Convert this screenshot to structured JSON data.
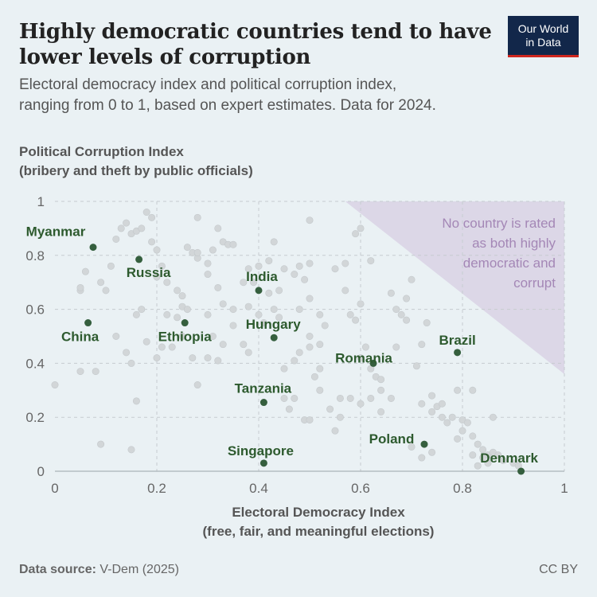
{
  "header": {
    "title": "Highly democratic countries tend to have\nlower levels of corruption",
    "subtitle": "Electoral democracy index and political corruption index,\nranging from 0 to 1, based on expert estimates. Data for 2024.",
    "logo_line1": "Our World",
    "logo_line2": "in Data"
  },
  "footer": {
    "source_label": "Data source:",
    "source_value": "V-Dem (2025)",
    "license": "CC BY"
  },
  "colors": {
    "background": "#eaf1f4",
    "highlight_point": "#355f3e",
    "highlight_label": "#2d5a2e",
    "background_point": "#d2d6d8",
    "annotation_region": "#dcd7e7",
    "annotation_text": "#a487b6",
    "logo_bg": "#12274a",
    "logo_bar": "#ce261e"
  },
  "chart_data": {
    "type": "scatter",
    "xlabel": "Electoral Democracy Index\n(free, fair, and meaningful elections)",
    "ylabel": "Political Corruption Index\n(bribery and theft by public officials)",
    "xlim": [
      0,
      1
    ],
    "ylim": [
      0,
      1
    ],
    "xticks": [
      "0",
      "0.2",
      "0.4",
      "0.6",
      "0.8",
      "1"
    ],
    "yticks": [
      "0",
      "0.2",
      "0.4",
      "0.6",
      "0.8",
      "1"
    ],
    "grid": "dashed",
    "annotation": {
      "text": [
        "No country is rated",
        "as both highly",
        "democratic and",
        "corrupt"
      ],
      "region": [
        [
          0.57,
          1
        ],
        [
          1,
          1
        ],
        [
          1,
          0.36
        ]
      ]
    },
    "highlighted": [
      {
        "name": "Myanmar",
        "x": 0.075,
        "y": 0.83
      },
      {
        "name": "Russia",
        "x": 0.165,
        "y": 0.785
      },
      {
        "name": "India",
        "x": 0.4,
        "y": 0.67
      },
      {
        "name": "China",
        "x": 0.065,
        "y": 0.55
      },
      {
        "name": "Ethiopia",
        "x": 0.255,
        "y": 0.55
      },
      {
        "name": "Hungary",
        "x": 0.43,
        "y": 0.495
      },
      {
        "name": "Brazil",
        "x": 0.79,
        "y": 0.44
      },
      {
        "name": "Romania",
        "x": 0.625,
        "y": 0.4
      },
      {
        "name": "Tanzania",
        "x": 0.41,
        "y": 0.255
      },
      {
        "name": "Poland",
        "x": 0.725,
        "y": 0.1
      },
      {
        "name": "Singapore",
        "x": 0.41,
        "y": 0.03
      },
      {
        "name": "Denmark",
        "x": 0.915,
        "y": 0.0
      }
    ],
    "other_points": [
      [
        0.0,
        0.32
      ],
      [
        0.05,
        0.37
      ],
      [
        0.08,
        0.37
      ],
      [
        0.09,
        0.1
      ],
      [
        0.15,
        0.08
      ],
      [
        0.16,
        0.26
      ],
      [
        0.12,
        0.5
      ],
      [
        0.15,
        0.4
      ],
      [
        0.14,
        0.44
      ],
      [
        0.18,
        0.48
      ],
      [
        0.2,
        0.42
      ],
      [
        0.21,
        0.46
      ],
      [
        0.23,
        0.46
      ],
      [
        0.25,
        0.5
      ],
      [
        0.27,
        0.42
      ],
      [
        0.28,
        0.32
      ],
      [
        0.05,
        0.67
      ],
      [
        0.05,
        0.68
      ],
      [
        0.06,
        0.74
      ],
      [
        0.09,
        0.7
      ],
      [
        0.1,
        0.67
      ],
      [
        0.11,
        0.76
      ],
      [
        0.12,
        0.86
      ],
      [
        0.13,
        0.9
      ],
      [
        0.14,
        0.92
      ],
      [
        0.15,
        0.88
      ],
      [
        0.16,
        0.89
      ],
      [
        0.17,
        0.9
      ],
      [
        0.18,
        0.96
      ],
      [
        0.19,
        0.94
      ],
      [
        0.19,
        0.85
      ],
      [
        0.2,
        0.82
      ],
      [
        0.21,
        0.76
      ],
      [
        0.2,
        0.72
      ],
      [
        0.22,
        0.7
      ],
      [
        0.24,
        0.67
      ],
      [
        0.25,
        0.65
      ],
      [
        0.22,
        0.58
      ],
      [
        0.26,
        0.83
      ],
      [
        0.27,
        0.81
      ],
      [
        0.28,
        0.79
      ],
      [
        0.28,
        0.81
      ],
      [
        0.3,
        0.77
      ],
      [
        0.31,
        0.82
      ],
      [
        0.3,
        0.73
      ],
      [
        0.32,
        0.68
      ],
      [
        0.33,
        0.62
      ],
      [
        0.3,
        0.58
      ],
      [
        0.28,
        0.94
      ],
      [
        0.32,
        0.9
      ],
      [
        0.33,
        0.85
      ],
      [
        0.34,
        0.84
      ],
      [
        0.35,
        0.84
      ],
      [
        0.37,
        0.7
      ],
      [
        0.38,
        0.75
      ],
      [
        0.39,
        0.7
      ],
      [
        0.4,
        0.76
      ],
      [
        0.42,
        0.78
      ],
      [
        0.42,
        0.66
      ],
      [
        0.43,
        0.6
      ],
      [
        0.43,
        0.85
      ],
      [
        0.45,
        0.75
      ],
      [
        0.47,
        0.73
      ],
      [
        0.48,
        0.76
      ],
      [
        0.49,
        0.71
      ],
      [
        0.5,
        0.77
      ],
      [
        0.48,
        0.6
      ],
      [
        0.5,
        0.64
      ],
      [
        0.52,
        0.58
      ],
      [
        0.53,
        0.54
      ],
      [
        0.5,
        0.5
      ],
      [
        0.5,
        0.46
      ],
      [
        0.48,
        0.44
      ],
      [
        0.52,
        0.47
      ],
      [
        0.52,
        0.38
      ],
      [
        0.51,
        0.35
      ],
      [
        0.52,
        0.3
      ],
      [
        0.49,
        0.19
      ],
      [
        0.5,
        0.19
      ],
      [
        0.55,
        0.15
      ],
      [
        0.5,
        0.93
      ],
      [
        0.55,
        0.75
      ],
      [
        0.57,
        0.77
      ],
      [
        0.57,
        0.67
      ],
      [
        0.58,
        0.58
      ],
      [
        0.59,
        0.56
      ],
      [
        0.6,
        0.42
      ],
      [
        0.6,
        0.62
      ],
      [
        0.61,
        0.46
      ],
      [
        0.62,
        0.38
      ],
      [
        0.63,
        0.35
      ],
      [
        0.64,
        0.3
      ],
      [
        0.64,
        0.34
      ],
      [
        0.62,
        0.27
      ],
      [
        0.66,
        0.27
      ],
      [
        0.67,
        0.46
      ],
      [
        0.66,
        0.66
      ],
      [
        0.67,
        0.6
      ],
      [
        0.68,
        0.58
      ],
      [
        0.69,
        0.64
      ],
      [
        0.69,
        0.56
      ],
      [
        0.7,
        0.71
      ],
      [
        0.71,
        0.39
      ],
      [
        0.72,
        0.25
      ],
      [
        0.72,
        0.47
      ],
      [
        0.73,
        0.55
      ],
      [
        0.74,
        0.28
      ],
      [
        0.74,
        0.22
      ],
      [
        0.74,
        0.07
      ],
      [
        0.75,
        0.24
      ],
      [
        0.76,
        0.25
      ],
      [
        0.76,
        0.2
      ],
      [
        0.77,
        0.18
      ],
      [
        0.78,
        0.2
      ],
      [
        0.8,
        0.15
      ],
      [
        0.8,
        0.19
      ],
      [
        0.81,
        0.18
      ],
      [
        0.82,
        0.13
      ],
      [
        0.82,
        0.06
      ],
      [
        0.83,
        0.1
      ],
      [
        0.83,
        0.02
      ],
      [
        0.84,
        0.08
      ],
      [
        0.84,
        0.05
      ],
      [
        0.85,
        0.03
      ],
      [
        0.85,
        0.06
      ],
      [
        0.86,
        0.07
      ],
      [
        0.87,
        0.06
      ],
      [
        0.88,
        0.04
      ],
      [
        0.9,
        0.03
      ],
      [
        0.91,
        0.02
      ],
      [
        0.86,
        0.2
      ],
      [
        0.82,
        0.3
      ],
      [
        0.79,
        0.3
      ],
      [
        0.7,
        0.09
      ],
      [
        0.72,
        0.05
      ],
      [
        0.79,
        0.12
      ],
      [
        0.37,
        0.47
      ],
      [
        0.38,
        0.44
      ],
      [
        0.45,
        0.27
      ],
      [
        0.46,
        0.23
      ],
      [
        0.47,
        0.27
      ],
      [
        0.45,
        0.38
      ],
      [
        0.47,
        0.41
      ],
      [
        0.35,
        0.6
      ],
      [
        0.35,
        0.54
      ],
      [
        0.4,
        0.58
      ],
      [
        0.24,
        0.57
      ],
      [
        0.25,
        0.61
      ],
      [
        0.26,
        0.6
      ],
      [
        0.17,
        0.6
      ],
      [
        0.16,
        0.58
      ],
      [
        0.59,
        0.88
      ],
      [
        0.6,
        0.9
      ],
      [
        0.62,
        0.78
      ],
      [
        0.56,
        0.27
      ],
      [
        0.58,
        0.27
      ],
      [
        0.6,
        0.25
      ],
      [
        0.54,
        0.23
      ],
      [
        0.56,
        0.2
      ],
      [
        0.64,
        0.22
      ],
      [
        0.44,
        0.67
      ],
      [
        0.44,
        0.57
      ],
      [
        0.41,
        0.55
      ],
      [
        0.38,
        0.61
      ],
      [
        0.33,
        0.47
      ],
      [
        0.31,
        0.5
      ],
      [
        0.3,
        0.42
      ],
      [
        0.32,
        0.41
      ]
    ]
  }
}
